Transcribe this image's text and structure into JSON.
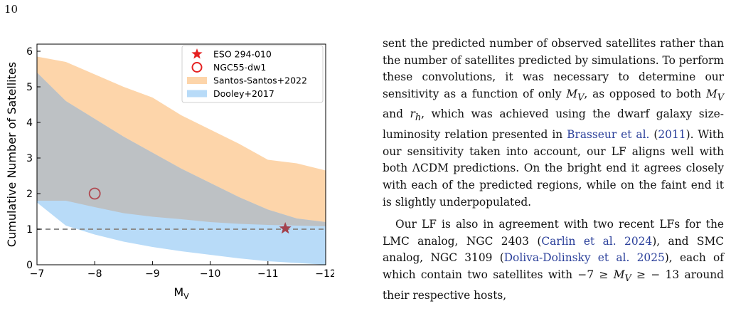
{
  "page": {
    "number": "10"
  },
  "colors": {
    "santos": "#fdd5aa",
    "dooley": "#b8dbf8",
    "overlap": "#bdc1c4",
    "star": "#a4414b",
    "circle": "#b04a52",
    "legend_star": "#e52222",
    "legend_circle": "#e52222",
    "dashed": "#8c8c8c"
  },
  "chart_data": {
    "type": "area",
    "xlabel": "M",
    "xlabel_sub": "V",
    "ylabel": "Cumulative Number of Satellites",
    "xlim": [
      -7,
      -12
    ],
    "ylim": [
      0,
      6.2
    ],
    "xticks": [
      {
        "value": -7,
        "label": "−7"
      },
      {
        "value": -8,
        "label": "−8"
      },
      {
        "value": -9,
        "label": "−9"
      },
      {
        "value": -10,
        "label": "−10"
      },
      {
        "value": -11,
        "label": "−11"
      },
      {
        "value": -12,
        "label": "−12"
      }
    ],
    "yticks": [
      {
        "value": 0,
        "label": "0"
      },
      {
        "value": 1,
        "label": "1"
      },
      {
        "value": 2,
        "label": "2"
      },
      {
        "value": 3,
        "label": "3"
      },
      {
        "value": 4,
        "label": "4"
      },
      {
        "value": 5,
        "label": "5"
      },
      {
        "value": 6,
        "label": "6"
      }
    ],
    "legend_position": "top-right",
    "series": [
      {
        "name": "Santos-Santos+2022",
        "kind": "band",
        "x": [
          -7,
          -7.5,
          -8,
          -8.5,
          -9,
          -9.5,
          -10,
          -10.5,
          -11,
          -11.5,
          -12
        ],
        "upper": [
          5.85,
          5.7,
          5.35,
          5.0,
          4.7,
          4.2,
          3.8,
          3.4,
          2.95,
          2.85,
          2.65
        ],
        "lower": [
          1.8,
          1.8,
          1.62,
          1.45,
          1.35,
          1.28,
          1.2,
          1.15,
          1.12,
          1.1,
          1.08
        ]
      },
      {
        "name": "Dooley+2017",
        "kind": "band",
        "x": [
          -7,
          -7.5,
          -8,
          -8.5,
          -9,
          -9.5,
          -10,
          -10.5,
          -11,
          -11.5,
          -12
        ],
        "upper": [
          5.4,
          4.6,
          4.1,
          3.6,
          3.15,
          2.7,
          2.3,
          1.9,
          1.55,
          1.3,
          1.2
        ],
        "lower": [
          1.75,
          1.1,
          0.85,
          0.65,
          0.5,
          0.38,
          0.28,
          0.18,
          0.1,
          0.05,
          0.0
        ]
      },
      {
        "name": "ESO 294-010",
        "kind": "point",
        "marker": "star",
        "x": -11.3,
        "y": 1.02
      },
      {
        "name": "NGC55-dw1",
        "kind": "point",
        "marker": "circle",
        "x": -8.0,
        "y": 2.0
      }
    ],
    "reference_line": {
      "y": 1.0,
      "style": "dashed"
    }
  },
  "text": {
    "p1": {
      "t1": "sent the predicted number of observed satellites rather than the number of satellites predicted by simulations. To perform these convolutions, it was necessary to determine our sensitivity as a function of only ",
      "m1": "M",
      "m1_sub": "V",
      "t2": ", as opposed to both ",
      "m2": "M",
      "m2_sub": "V",
      "t3": " and ",
      "m3": "r",
      "m3_sub": "h",
      "t4": ", which was achieved using the dwarf galaxy size-luminosity relation presented in ",
      "c1": "Brasseur et al.",
      "t5": " (",
      "c2": "2011",
      "t6": "). With our sensitivity taken into account, our LF aligns well with both ΛCDM predictions. On the bright end it agrees closely with each of the predicted regions, while on the faint end it is slightly underpopulated."
    },
    "p2": {
      "t1": "Our LF is also in agreement with two recent LFs for the LMC analog, NGC 2403 (",
      "c1": "Carlin et al. 2024",
      "t2": "), and SMC analog, NGC 3109 (",
      "c2": "Doliva-Dolinsky et al. 2025",
      "t3": "), each of which contain two satellites with −7 ≥ ",
      "m1": "M",
      "m1_sub": "V",
      "t4": " ≥ − 13 around their respective hosts,"
    }
  }
}
